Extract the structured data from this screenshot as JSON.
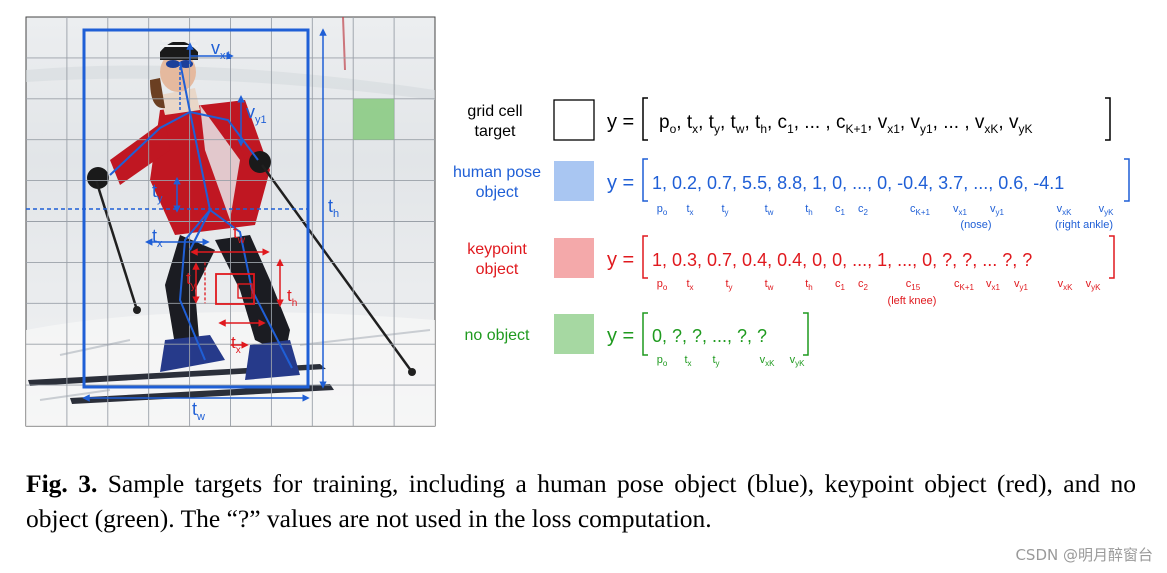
{
  "photo": {
    "labels": {
      "vx1": "v",
      "vx1_sub": "x1",
      "vy1": "v",
      "vy1_sub": "y1",
      "ty": "t",
      "ty_sub": "y",
      "tx": "t",
      "tx_sub": "x",
      "th": "t",
      "th_sub": "h",
      "tw": "t",
      "tw_sub": "w",
      "kw": "t",
      "kw_sub": "w",
      "ky": "t",
      "ky_sub": "y",
      "kh": "t",
      "kh_sub": "h",
      "kx": "t",
      "kx_sub": "x"
    }
  },
  "rows": {
    "grid_cell": {
      "label1": "grid cell",
      "label2": "target",
      "color": "#000000",
      "swatch": "#ffffff",
      "formula": [
        {
          "t": "p",
          "s": "o"
        },
        {
          "t": ", t",
          "s": "x"
        },
        {
          "t": ", t",
          "s": "y"
        },
        {
          "t": ", t",
          "s": "w"
        },
        {
          "t": ", t",
          "s": "h"
        },
        {
          "t": ", c",
          "s": "1"
        },
        {
          "t": ", ... , c",
          "s": "K+1"
        },
        {
          "t": ", v",
          "s": "x1"
        },
        {
          "t": ", v",
          "s": "y1"
        },
        {
          "t": ", ... , v",
          "s": "xK"
        },
        {
          "t": ", v",
          "s": "yK"
        }
      ]
    },
    "human_pose": {
      "label1": "human pose",
      "label2": "object",
      "color": "#1f5fd6",
      "swatch": "#a9c6f2",
      "values": "1, 0.2, 0.7, 5.5, 8.8, 1, 0,  ..., 0, -0.4, 3.7, ..., 0.6, -4.1",
      "subs": [
        {
          "t": "p",
          "s": "o"
        },
        {
          "t": "t",
          "s": "x"
        },
        {
          "t": "t",
          "s": "y"
        },
        {
          "t": "t",
          "s": "w"
        },
        {
          "t": "t",
          "s": "h"
        },
        {
          "t": "c",
          "s": "1"
        },
        {
          "t": "c",
          "s": "2"
        },
        {
          "t": "c",
          "s": "K+1"
        },
        {
          "t": "v",
          "s": "x1"
        },
        {
          "t": "v",
          "s": "y1"
        },
        {
          "t": "v",
          "s": "xK"
        },
        {
          "t": "v",
          "s": "yK"
        }
      ],
      "note1": "(nose)",
      "note2": "(right ankle)"
    },
    "keypoint": {
      "label1": "keypoint",
      "label2": "object",
      "color": "#e0191e",
      "swatch": "#f4a9aa",
      "values": "1, 0.3, 0.7, 0.4, 0.4, 0, 0, ..., 1, ..., 0,  ?,  ?, ... ?,  ?",
      "subs": [
        {
          "t": "p",
          "s": "o"
        },
        {
          "t": "t",
          "s": "x"
        },
        {
          "t": "t",
          "s": "y"
        },
        {
          "t": "t",
          "s": "w"
        },
        {
          "t": "t",
          "s": "h"
        },
        {
          "t": "c",
          "s": "1"
        },
        {
          "t": "c",
          "s": "2"
        },
        {
          "t": "c",
          "s": "15"
        },
        {
          "t": "c",
          "s": "K+1"
        },
        {
          "t": "v",
          "s": "x1"
        },
        {
          "t": "v",
          "s": "y1"
        },
        {
          "t": "v",
          "s": "xK"
        },
        {
          "t": "v",
          "s": "yK"
        }
      ],
      "note1": "(left knee)"
    },
    "no_object": {
      "label1": "no object",
      "color": "#1f9a1f",
      "swatch": "#a6d8a2",
      "values": "0,  ?,  ?, ...,  ?,  ?",
      "subs": [
        {
          "t": "p",
          "s": "o"
        },
        {
          "t": "t",
          "s": "x"
        },
        {
          "t": "t",
          "s": "y"
        },
        {
          "t": "v",
          "s": "xK"
        },
        {
          "t": "v",
          "s": "yK"
        }
      ]
    },
    "y_label": "y ="
  },
  "caption": {
    "fig": "Fig. 3.",
    "text": " Sample targets for training, including a human pose object (blue), keypoint object (red), and no object (green). The “?” values are not used in the loss computation."
  },
  "watermark": "CSDN @明月醉窗台"
}
